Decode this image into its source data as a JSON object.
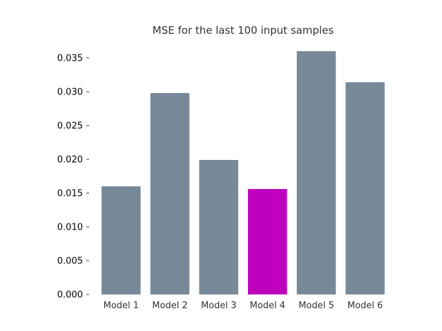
{
  "chart_data": {
    "type": "bar",
    "title": "MSE for the last 100 input samples",
    "xlabel": "",
    "ylabel": "",
    "categories": [
      "Model 1",
      "Model 2",
      "Model 3",
      "Model 4",
      "Model 5",
      "Model 6"
    ],
    "values": [
      0.016,
      0.0298,
      0.0199,
      0.0156,
      0.036,
      0.0314
    ],
    "ylim": [
      0,
      0.036
    ],
    "yticks": [
      "0.000",
      "0.005",
      "0.010",
      "0.015",
      "0.020",
      "0.025",
      "0.030",
      "0.035"
    ],
    "ytick_values": [
      0,
      0.005,
      0.01,
      0.015,
      0.02,
      0.025,
      0.03,
      0.035
    ],
    "bar_colors": [
      "#778899",
      "#778899",
      "#778899",
      "#bf00bf",
      "#778899",
      "#778899"
    ],
    "grid": false,
    "legend": "none"
  }
}
